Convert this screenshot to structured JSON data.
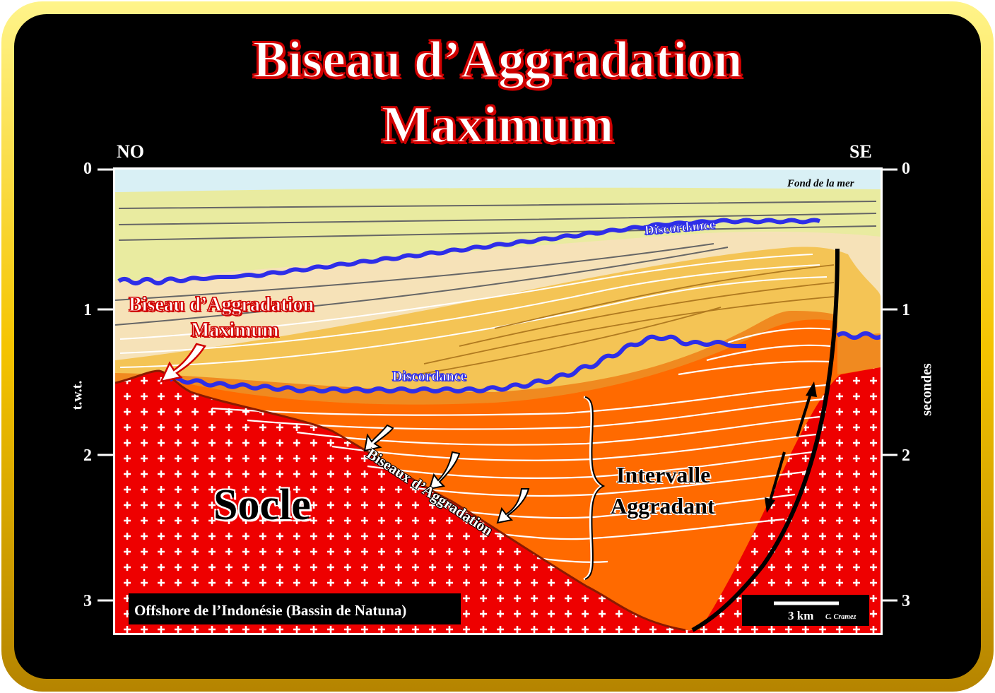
{
  "title": {
    "line1": "Biseau d’Aggradation",
    "line2": "Maximum"
  },
  "orientation": {
    "left": "NO",
    "right": "SE"
  },
  "axis": {
    "left_ticks": [
      "0",
      "1",
      "2",
      "3"
    ],
    "right_ticks": [
      "0",
      "1",
      "2",
      "3"
    ],
    "left_label": "t.w.t.",
    "right_label": "secondes"
  },
  "labels": {
    "sea_floor": "Fond de la mer",
    "unconformity_upper": "Discordance",
    "unconformity_lower": "Discordance",
    "max_onlap_line1": "Biseau d’Aggradation",
    "max_onlap_line2": "Maximum",
    "onlaps": "Biseaux d’Aggradation",
    "interval_line1": "Intervalle",
    "interval_line2": "Aggradant",
    "basement": "Socle",
    "location": "Offshore de l’Indonésie  (Bassin de Natuna)",
    "scale": "3 km",
    "author": "C. Cramez"
  },
  "colors": {
    "frame_gold": "#f5c400",
    "background": "#000000",
    "sea": "#d9f0f5",
    "upper_layer": "#e9eba0",
    "cream_layer": "#f6e2b8",
    "yellow_orange": "#f4c455",
    "orange": "#f08a20",
    "deep_orange": "#ff6a00",
    "basement": "#ee0000",
    "unconformity": "#2e2ee8",
    "title_outline": "#d00000"
  }
}
